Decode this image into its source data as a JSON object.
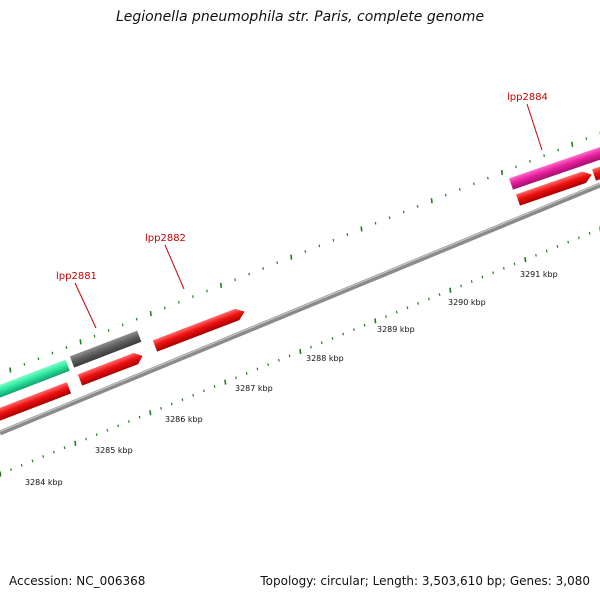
{
  "title": "Legionella pneumophila str. Paris, complete genome",
  "footer": {
    "accession": "Accession: NC_006368",
    "summary": "Topology: circular; Length: 3,503,610 bp; Genes: 3,080"
  },
  "gene_labels": [
    "lpp2881",
    "lpp2882",
    "lpp2884"
  ],
  "scale_labels": [
    "3284 kbp",
    "3285 kbp",
    "3286 kbp",
    "3287 kbp",
    "3288 kbp",
    "3289 kbp",
    "3290 kbp",
    "3291 kbp"
  ],
  "colors": {
    "backbone": "#808080",
    "tick": "#1e7d1e",
    "forward_gene_teal": "#2ee8a0",
    "forward_gene_grey": "#606060",
    "forward_gene_magenta": "#e8209e",
    "reverse_gene_red": "#ee1111",
    "label_red": "#cc0000"
  }
}
